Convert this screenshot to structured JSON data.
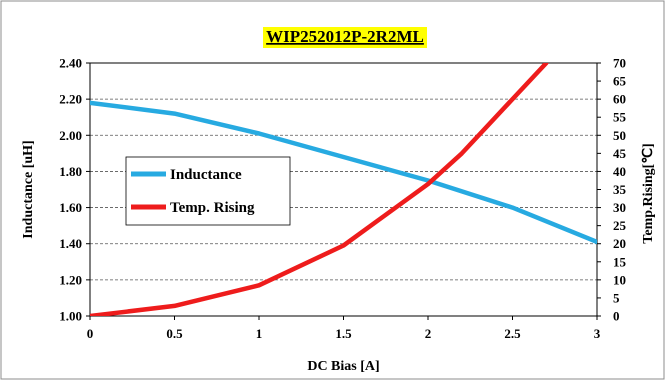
{
  "chart_data": {
    "type": "line",
    "title": "WIP252012P-2R2ML",
    "title_background": "#ffff00",
    "xlabel": "DC Bias [A]",
    "ylabel": "Inductance [uH]",
    "y2label": "Temp.Rising[℃]",
    "xlim": [
      0,
      3
    ],
    "ylim": [
      1.0,
      2.4
    ],
    "y2lim": [
      0,
      70
    ],
    "x_ticks": [
      "0",
      "0.5",
      "1",
      "1.5",
      "2",
      "2.5",
      "3"
    ],
    "y_ticks": [
      "1.00",
      "1.20",
      "1.40",
      "1.60",
      "1.80",
      "2.00",
      "2.20",
      "2.40"
    ],
    "y2_ticks": [
      "0",
      "5",
      "10",
      "15",
      "20",
      "25",
      "30",
      "35",
      "40",
      "45",
      "50",
      "55",
      "60",
      "65",
      "70"
    ],
    "grid": "horizontal dashed",
    "legend_placement": "left-center",
    "series": [
      {
        "name": "Inductance",
        "axis": "left",
        "color": "#27aae1",
        "x": [
          0,
          0.5,
          1,
          1.5,
          2,
          2.5,
          3
        ],
        "y": [
          2.18,
          2.12,
          2.01,
          1.88,
          1.75,
          1.6,
          1.41
        ]
      },
      {
        "name": "Temp. Rising",
        "axis": "right",
        "color": "#ee1c1c",
        "x": [
          0,
          0.5,
          1,
          1.5,
          2,
          2.2,
          2.5,
          2.7
        ],
        "y": [
          0,
          2.8,
          8.5,
          19.5,
          36.5,
          45,
          60,
          70
        ]
      }
    ]
  }
}
